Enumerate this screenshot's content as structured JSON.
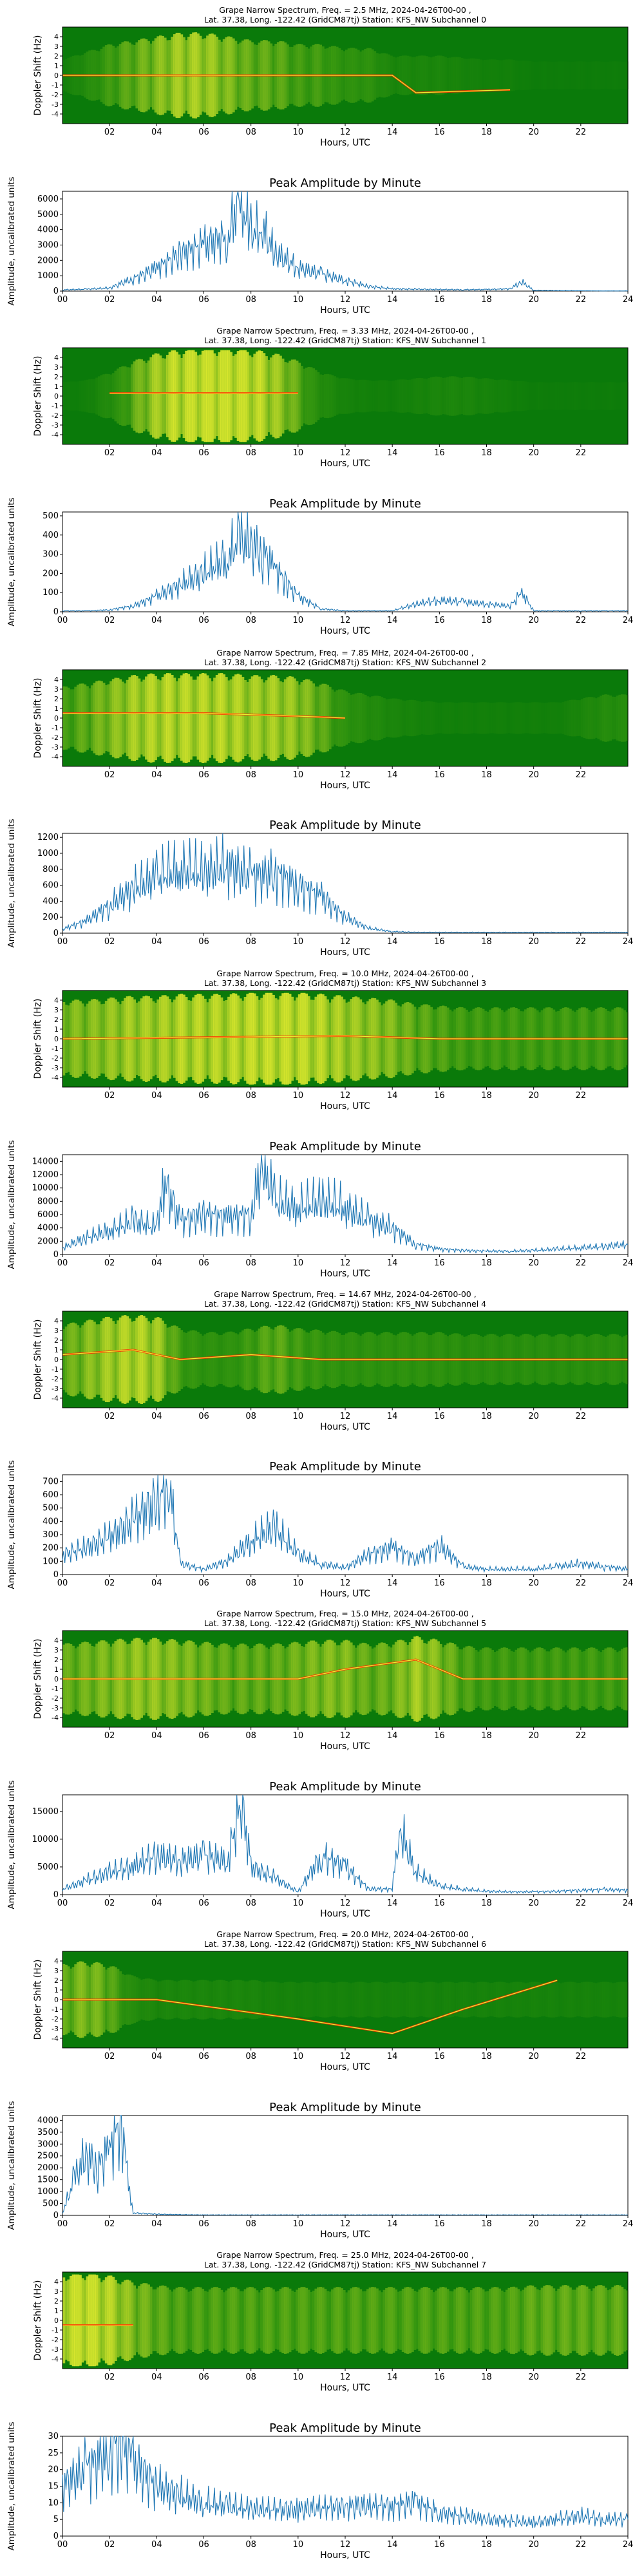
{
  "figure": {
    "common": {
      "spectrogram_x_label": "Hours, UTC",
      "spectrogram_y_label": "Doppler Shift (Hz)",
      "amplitude_title": "Peak Amplitude by Minute",
      "amplitude_x_label": "Hours, UTC",
      "amplitude_y_label": "Amplitude, uncalibrated units",
      "station_line": "Lat.  37.38, Long. -122.42 (GridCM87tj) Station: KFS_NW"
    },
    "colors": {
      "spectrogram_background": "#0a7a0a",
      "spectrogram_low": "#3a9a10",
      "spectrogram_mid": "#e8ee30",
      "spectrogram_high": "#ff2a00",
      "amplitude_line": "#1f77b4",
      "axis": "#000000"
    }
  },
  "chart_data": [
    {
      "type": "heatmap",
      "title_line_1": "Grape Narrow Spectrum, Freq. = 2.5 MHz, 2024-04-26T00-00 ,",
      "title_line_2": "Lat.  37.38, Long. -122.42 (GridCM87tj) Station: KFS_NW Subchannel 0",
      "xlabel": "Hours, UTC",
      "ylabel": "Doppler Shift (Hz)",
      "xlim": [
        0,
        24
      ],
      "ylim": [
        -5,
        5
      ],
      "x_ticks": [
        "02",
        "04",
        "06",
        "08",
        "10",
        "12",
        "14",
        "16",
        "18",
        "20",
        "22"
      ],
      "y_ticks": [
        "4",
        "3",
        "2",
        "1",
        "0",
        "-1",
        "-2",
        "-3",
        "-4"
      ],
      "intensity_profile": [
        0.1,
        0.3,
        0.5,
        0.6,
        0.7,
        0.8,
        0.8,
        0.7,
        0.6,
        0.6,
        0.5,
        0.5,
        0.4,
        0.4,
        0.2,
        0.2,
        0.2,
        0.15,
        0.1,
        0.1,
        0.05,
        0.05,
        0.05,
        0.05,
        0.05
      ],
      "doppler_trace": [
        [
          0,
          0
        ],
        [
          14,
          0
        ],
        [
          15,
          -1.8
        ],
        [
          19,
          -1.5
        ]
      ]
    },
    {
      "type": "line",
      "title": "Peak Amplitude by Minute",
      "xlabel": "Hours, UTC",
      "ylabel": "Amplitude, uncalibrated units",
      "xlim": [
        0,
        24
      ],
      "ylim": [
        0,
        6500
      ],
      "yticks": [
        0,
        1000,
        2000,
        3000,
        4000,
        5000,
        6000
      ],
      "x": [
        0,
        1,
        2,
        3,
        4,
        5,
        6,
        7,
        7.5,
        8,
        8.5,
        9,
        10,
        11,
        12,
        13,
        14,
        15,
        16,
        17,
        18,
        19,
        19.5,
        20,
        21,
        22,
        23,
        24
      ],
      "values": [
        80,
        120,
        200,
        800,
        1500,
        2400,
        3000,
        3500,
        6000,
        3800,
        4000,
        2500,
        1500,
        1100,
        700,
        300,
        150,
        120,
        100,
        90,
        100,
        150,
        600,
        50,
        30,
        20,
        10,
        10
      ]
    },
    {
      "type": "heatmap",
      "title_line_1": "Grape Narrow Spectrum, Freq. = 3.33 MHz, 2024-04-26T00-00 ,",
      "title_line_2": "Lat.  37.38, Long. -122.42 (GridCM87tj) Station: KFS_NW Subchannel 1",
      "xlabel": "Hours, UTC",
      "ylabel": "Doppler Shift (Hz)",
      "xlim": [
        0,
        24
      ],
      "ylim": [
        -5,
        5
      ],
      "x_ticks": [
        "02",
        "04",
        "06",
        "08",
        "10",
        "12",
        "14",
        "16",
        "18",
        "20",
        "22"
      ],
      "y_ticks": [
        "4",
        "3",
        "2",
        "1",
        "0",
        "-1",
        "-2",
        "-3",
        "-4"
      ],
      "intensity_profile": [
        0.05,
        0.1,
        0.3,
        0.6,
        0.8,
        0.9,
        0.95,
        0.95,
        0.9,
        0.8,
        0.6,
        0.3,
        0.15,
        0.1,
        0.1,
        0.15,
        0.2,
        0.2,
        0.15,
        0.1,
        0.05,
        0.05,
        0.05,
        0.05,
        0.05
      ],
      "doppler_trace": [
        [
          2,
          0.3
        ],
        [
          10,
          0.3
        ]
      ]
    },
    {
      "type": "line",
      "title": "Peak Amplitude by Minute",
      "xlabel": "Hours, UTC",
      "ylabel": "Amplitude, uncalibrated units",
      "xlim": [
        0,
        24
      ],
      "ylim": [
        0,
        520
      ],
      "yticks": [
        0,
        100,
        200,
        300,
        400,
        500
      ],
      "x": [
        0,
        1,
        2,
        3,
        4,
        5,
        6,
        7,
        7.5,
        8,
        8.5,
        9,
        9.5,
        10,
        11,
        12,
        13,
        14,
        15,
        16,
        17,
        18,
        19,
        19.5,
        20,
        21,
        22,
        23,
        24
      ],
      "values": [
        5,
        5,
        10,
        30,
        80,
        140,
        200,
        280,
        380,
        350,
        310,
        230,
        150,
        80,
        15,
        5,
        5,
        5,
        40,
        60,
        50,
        40,
        30,
        100,
        5,
        5,
        5,
        5,
        5
      ]
    },
    {
      "type": "heatmap",
      "title_line_1": "Grape Narrow Spectrum, Freq. = 7.85 MHz, 2024-04-26T00-00 ,",
      "title_line_2": "Lat.  37.38, Long. -122.42 (GridCM87tj) Station: KFS_NW Subchannel 2",
      "xlabel": "Hours, UTC",
      "ylabel": "Doppler Shift (Hz)",
      "xlim": [
        0,
        24
      ],
      "ylim": [
        -5,
        5
      ],
      "x_ticks": [
        "02",
        "04",
        "06",
        "08",
        "10",
        "12",
        "14",
        "16",
        "18",
        "20",
        "22"
      ],
      "y_ticks": [
        "4",
        "3",
        "2",
        "1",
        "0",
        "-1",
        "-2",
        "-3",
        "-4"
      ],
      "intensity_profile": [
        0.5,
        0.6,
        0.7,
        0.8,
        0.85,
        0.85,
        0.85,
        0.85,
        0.8,
        0.8,
        0.75,
        0.6,
        0.4,
        0.3,
        0.2,
        0.15,
        0.1,
        0.1,
        0.1,
        0.1,
        0.1,
        0.1,
        0.2,
        0.3,
        0.3
      ],
      "doppler_trace": [
        [
          0,
          0.5
        ],
        [
          6,
          0.5
        ],
        [
          10,
          0.2
        ],
        [
          12,
          0
        ]
      ]
    },
    {
      "type": "line",
      "title": "Peak Amplitude by Minute",
      "xlabel": "Hours, UTC",
      "ylabel": "Amplitude, uncalibrated units",
      "xlim": [
        0,
        24
      ],
      "ylim": [
        0,
        1250
      ],
      "yticks": [
        0,
        200,
        400,
        600,
        800,
        1000,
        1200
      ],
      "x": [
        0,
        1,
        2,
        3,
        4,
        5,
        6,
        7,
        8,
        9,
        10,
        11,
        12,
        13,
        14,
        15,
        16,
        17,
        18,
        19,
        20,
        21,
        22,
        23,
        24
      ],
      "values": [
        50,
        150,
        350,
        550,
        700,
        800,
        750,
        850,
        700,
        750,
        600,
        450,
        200,
        60,
        20,
        10,
        10,
        10,
        10,
        10,
        10,
        10,
        10,
        10,
        10
      ]
    },
    {
      "type": "heatmap",
      "title_line_1": "Grape Narrow Spectrum, Freq. = 10.0 MHz, 2024-04-26T00-00 ,",
      "title_line_2": "Lat.  37.38, Long. -122.42 (GridCM87tj) Station: KFS_NW Subchannel 3",
      "xlabel": "Hours, UTC",
      "ylabel": "Doppler Shift (Hz)",
      "xlim": [
        0,
        24
      ],
      "ylim": [
        -5,
        5
      ],
      "x_ticks": [
        "02",
        "04",
        "06",
        "08",
        "10",
        "12",
        "14",
        "16",
        "18",
        "20",
        "22"
      ],
      "y_ticks": [
        "4",
        "3",
        "2",
        "1",
        "0",
        "-1",
        "-2",
        "-3",
        "-4"
      ],
      "intensity_profile": [
        0.7,
        0.7,
        0.75,
        0.8,
        0.8,
        0.85,
        0.85,
        0.85,
        0.9,
        0.9,
        0.9,
        0.85,
        0.8,
        0.75,
        0.7,
        0.6,
        0.55,
        0.5,
        0.5,
        0.5,
        0.5,
        0.5,
        0.5,
        0.5,
        0.5
      ],
      "doppler_trace": [
        [
          0,
          0
        ],
        [
          12,
          0.3
        ],
        [
          16,
          0
        ],
        [
          24,
          0
        ]
      ]
    },
    {
      "type": "line",
      "title": "Peak Amplitude by Minute",
      "xlabel": "Hours, UTC",
      "ylabel": "Amplitude, uncalibrated units",
      "xlim": [
        0,
        24
      ],
      "ylim": [
        0,
        15000
      ],
      "yticks": [
        0,
        2000,
        4000,
        6000,
        8000,
        10000,
        12000,
        14000
      ],
      "x": [
        0,
        1,
        2,
        3,
        4,
        4.3,
        5,
        6,
        7,
        8,
        8.5,
        9,
        10,
        11,
        12,
        13,
        14,
        15,
        16,
        17,
        18,
        19,
        20,
        21,
        22,
        23,
        24
      ],
      "values": [
        1000,
        2500,
        3500,
        5000,
        4000,
        11000,
        5000,
        6000,
        5500,
        6000,
        14000,
        8000,
        7000,
        8000,
        7000,
        5000,
        4000,
        1500,
        800,
        600,
        500,
        500,
        600,
        800,
        1000,
        1200,
        1500
      ]
    },
    {
      "type": "heatmap",
      "title_line_1": "Grape Narrow Spectrum, Freq. = 14.67 MHz, 2024-04-26T00-00 ,",
      "title_line_2": "Lat.  37.38, Long. -122.42 (GridCM87tj) Station: KFS_NW Subchannel 4",
      "xlabel": "Hours, UTC",
      "ylabel": "Doppler Shift (Hz)",
      "xlim": [
        0,
        24
      ],
      "ylim": [
        -5,
        5
      ],
      "x_ticks": [
        "02",
        "04",
        "06",
        "08",
        "10",
        "12",
        "14",
        "16",
        "18",
        "20",
        "22"
      ],
      "y_ticks": [
        "4",
        "3",
        "2",
        "1",
        "0",
        "-1",
        "-2",
        "-3",
        "-4"
      ],
      "intensity_profile": [
        0.6,
        0.7,
        0.8,
        0.85,
        0.8,
        0.5,
        0.4,
        0.4,
        0.5,
        0.6,
        0.5,
        0.45,
        0.4,
        0.4,
        0.4,
        0.4,
        0.4,
        0.35,
        0.35,
        0.35,
        0.35,
        0.35,
        0.35,
        0.35,
        0.35
      ],
      "doppler_trace": [
        [
          0,
          0.5
        ],
        [
          3,
          1
        ],
        [
          5,
          0
        ],
        [
          8,
          0.5
        ],
        [
          11,
          0
        ],
        [
          24,
          0
        ]
      ]
    },
    {
      "type": "line",
      "title": "Peak Amplitude by Minute",
      "xlabel": "Hours, UTC",
      "ylabel": "Amplitude, uncalibrated units",
      "xlim": [
        0,
        24
      ],
      "ylim": [
        0,
        750
      ],
      "yticks": [
        0,
        100,
        200,
        300,
        400,
        500,
        600,
        700
      ],
      "x": [
        0,
        1,
        2,
        3,
        4,
        4.5,
        5,
        6,
        7,
        8,
        9,
        10,
        11,
        12,
        13,
        14,
        15,
        16,
        17,
        18,
        19,
        20,
        21,
        22,
        23,
        24
      ],
      "values": [
        150,
        200,
        280,
        400,
        550,
        700,
        80,
        40,
        100,
        250,
        350,
        150,
        80,
        50,
        150,
        200,
        120,
        220,
        60,
        40,
        40,
        40,
        60,
        80,
        60,
        40
      ]
    },
    {
      "type": "heatmap",
      "title_line_1": "Grape Narrow Spectrum, Freq. = 15.0 MHz, 2024-04-26T00-00 ,",
      "title_line_2": "Lat.  37.38, Long. -122.42 (GridCM87tj) Station: KFS_NW Subchannel 5",
      "xlabel": "Hours, UTC",
      "ylabel": "Doppler Shift (Hz)",
      "xlim": [
        0,
        24
      ],
      "ylim": [
        -5,
        5
      ],
      "x_ticks": [
        "02",
        "04",
        "06",
        "08",
        "10",
        "12",
        "14",
        "16",
        "18",
        "20",
        "22"
      ],
      "y_ticks": [
        "4",
        "3",
        "2",
        "1",
        "0",
        "-1",
        "-2",
        "-3",
        "-4"
      ],
      "intensity_profile": [
        0.6,
        0.65,
        0.7,
        0.75,
        0.75,
        0.7,
        0.65,
        0.6,
        0.6,
        0.6,
        0.65,
        0.7,
        0.7,
        0.6,
        0.65,
        0.8,
        0.7,
        0.55,
        0.5,
        0.5,
        0.5,
        0.5,
        0.5,
        0.5,
        0.5
      ],
      "doppler_trace": [
        [
          0,
          0
        ],
        [
          10,
          0
        ],
        [
          12,
          1
        ],
        [
          15,
          2
        ],
        [
          17,
          0
        ],
        [
          24,
          0
        ]
      ]
    },
    {
      "type": "line",
      "title": "Peak Amplitude by Minute",
      "xlabel": "Hours, UTC",
      "ylabel": "Amplitude, uncalibrated units",
      "xlim": [
        0,
        24
      ],
      "ylim": [
        0,
        18000
      ],
      "yticks": [
        0,
        5000,
        10000,
        15000
      ],
      "x": [
        0,
        1,
        2,
        3,
        4,
        5,
        6,
        7,
        7.6,
        8,
        9,
        10,
        11,
        12,
        13,
        14,
        14.3,
        15,
        16,
        17,
        18,
        19,
        20,
        21,
        22,
        23,
        24
      ],
      "values": [
        1000,
        2500,
        4000,
        5000,
        7000,
        6000,
        7000,
        6000,
        17000,
        5000,
        3000,
        500,
        7000,
        5000,
        1000,
        1000,
        12000,
        4000,
        1500,
        1000,
        600,
        500,
        500,
        600,
        800,
        900,
        800
      ]
    },
    {
      "type": "heatmap",
      "title_line_1": "Grape Narrow Spectrum, Freq. = 20.0 MHz, 2024-04-26T00-00 ,",
      "title_line_2": "Lat.  37.38, Long. -122.42 (GridCM87tj) Station: KFS_NW Subchannel 6",
      "xlabel": "Hours, UTC",
      "ylabel": "Doppler Shift (Hz)",
      "xlim": [
        0,
        24
      ],
      "ylim": [
        -5,
        5
      ],
      "x_ticks": [
        "02",
        "04",
        "06",
        "08",
        "10",
        "12",
        "14",
        "16",
        "18",
        "20",
        "22"
      ],
      "y_ticks": [
        "4",
        "3",
        "2",
        "1",
        "0",
        "-1",
        "-2",
        "-3",
        "-4"
      ],
      "intensity_profile": [
        0.6,
        0.7,
        0.6,
        0.3,
        0.2,
        0.2,
        0.2,
        0.2,
        0.2,
        0.15,
        0.15,
        0.15,
        0.15,
        0.15,
        0.15,
        0.15,
        0.15,
        0.15,
        0.15,
        0.15,
        0.15,
        0.15,
        0.15,
        0.15,
        0.15
      ],
      "doppler_trace": [
        [
          0,
          0
        ],
        [
          4,
          0
        ],
        [
          10,
          -2
        ],
        [
          14,
          -3.5
        ],
        [
          17,
          -1
        ],
        [
          21,
          2
        ]
      ]
    },
    {
      "type": "line",
      "title": "Peak Amplitude by Minute",
      "xlabel": "Hours, UTC",
      "ylabel": "Amplitude, uncalibrated units",
      "xlim": [
        0,
        24
      ],
      "ylim": [
        0,
        4200
      ],
      "yticks": [
        0,
        500,
        1000,
        1500,
        2000,
        2500,
        3000,
        3500,
        4000
      ],
      "x": [
        0,
        0.5,
        1,
        1.5,
        2,
        2.5,
        2.7,
        3,
        4,
        5,
        6,
        8,
        10,
        12,
        14,
        16,
        18,
        20,
        22,
        24
      ],
      "values": [
        100,
        1500,
        2500,
        2000,
        2800,
        4000,
        2000,
        100,
        50,
        30,
        20,
        20,
        20,
        20,
        20,
        20,
        20,
        20,
        20,
        20
      ]
    },
    {
      "type": "heatmap",
      "title_line_1": "Grape Narrow Spectrum, Freq. = 25.0 MHz, 2024-04-26T00-00 ,",
      "title_line_2": "Lat.  37.38, Long. -122.42 (GridCM87tj) Station: KFS_NW Subchannel 7",
      "xlabel": "Hours, UTC",
      "ylabel": "Doppler Shift (Hz)",
      "xlim": [
        0,
        24
      ],
      "ylim": [
        -5,
        5
      ],
      "x_ticks": [
        "02",
        "04",
        "06",
        "08",
        "10",
        "12",
        "14",
        "16",
        "18",
        "20",
        "22"
      ],
      "y_ticks": [
        "4",
        "3",
        "2",
        "1",
        "0",
        "-1",
        "-2",
        "-3",
        "-4"
      ],
      "intensity_profile": [
        0.9,
        0.95,
        0.85,
        0.7,
        0.6,
        0.55,
        0.55,
        0.55,
        0.55,
        0.55,
        0.55,
        0.55,
        0.55,
        0.55,
        0.55,
        0.55,
        0.55,
        0.55,
        0.55,
        0.55,
        0.6,
        0.6,
        0.6,
        0.6,
        0.6
      ],
      "doppler_trace": [
        [
          0,
          -0.5
        ],
        [
          3,
          -0.5
        ]
      ]
    },
    {
      "type": "line",
      "title": "Peak Amplitude by Minute",
      "xlabel": "Hours, UTC",
      "ylabel": "Amplitude, uncalibrated units",
      "xlim": [
        0,
        24
      ],
      "ylim": [
        0,
        30
      ],
      "yticks": [
        0,
        5,
        10,
        15,
        20,
        25,
        30
      ],
      "x": [
        0,
        1,
        2,
        2.5,
        3,
        4,
        5,
        6,
        7,
        8,
        10,
        12,
        14,
        15,
        16,
        18,
        20,
        21,
        22,
        23,
        24
      ],
      "values": [
        15,
        20,
        25,
        30,
        22,
        15,
        12,
        10,
        9,
        8,
        8,
        9,
        9,
        10,
        7,
        5,
        4,
        5,
        6,
        5,
        5
      ]
    }
  ]
}
